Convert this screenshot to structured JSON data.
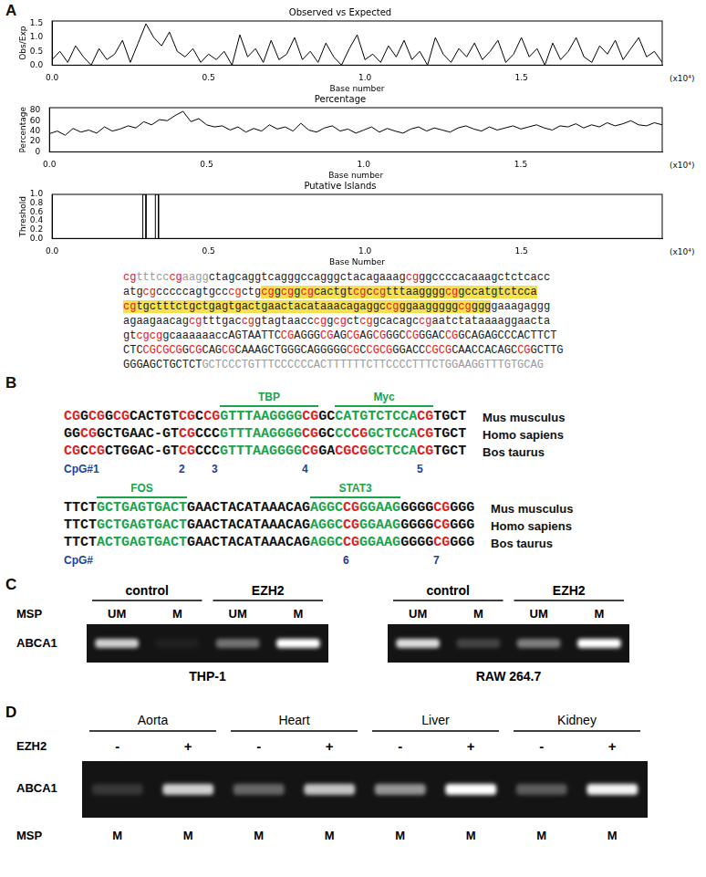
{
  "chart_data": [
    {
      "type": "line",
      "title": "Observed vs Expected",
      "x_label": "Base number",
      "y_label": "Obs/Exp",
      "annotation": "(x10⁴)",
      "color": "#000000",
      "grid": false,
      "x": [
        0,
        0.025,
        0.05,
        0.075,
        0.1,
        0.125,
        0.15,
        0.175,
        0.2,
        0.225,
        0.25,
        0.275,
        0.3,
        0.325,
        0.35,
        0.375,
        0.4,
        0.425,
        0.45,
        0.475,
        0.5,
        0.525,
        0.55,
        0.575,
        0.6,
        0.625,
        0.65,
        0.675,
        0.7,
        0.725,
        0.75,
        0.775,
        0.8,
        0.825,
        0.85,
        0.875,
        0.9,
        0.925,
        0.95,
        0.975,
        1.0,
        1.025,
        1.05,
        1.075,
        1.1,
        1.125,
        1.15,
        1.175,
        1.2,
        1.225,
        1.25,
        1.275,
        1.3,
        1.325,
        1.35,
        1.375,
        1.4,
        1.425,
        1.45,
        1.475,
        1.5,
        1.525,
        1.55,
        1.575,
        1.6,
        1.625,
        1.65,
        1.675,
        1.7,
        1.725,
        1.75,
        1.775,
        1.8,
        1.825,
        1.85,
        1.875,
        1.9,
        1.925,
        1.95
      ],
      "values": [
        0.2,
        0.5,
        0.1,
        0.7,
        0.3,
        0.0,
        0.6,
        0.2,
        0.4,
        0.9,
        0.1,
        0.8,
        1.5,
        1.0,
        0.7,
        1.2,
        0.5,
        0.3,
        0.6,
        0.1,
        0.4,
        0.2,
        0.5,
        0.0,
        1.1,
        0.3,
        0.6,
        0.1,
        0.9,
        0.2,
        0.4,
        1.0,
        0.2,
        0.5,
        0.1,
        0.8,
        0.3,
        0.0,
        0.6,
        1.1,
        0.2,
        0.4,
        0.1,
        0.7,
        0.3,
        0.9,
        0.2,
        0.5,
        0.0,
        1.0,
        0.4,
        0.1,
        0.6,
        0.3,
        0.8,
        0.2,
        0.5,
        0.9,
        0.1,
        0.4,
        1.0,
        0.3,
        0.6,
        0.0,
        0.8,
        0.2,
        0.5,
        1.0,
        0.3,
        0.1,
        0.7,
        0.4,
        0.9,
        0.2,
        0.6,
        1.0,
        0.3,
        0.5,
        0.1
      ],
      "xlim": [
        0,
        1.95
      ],
      "xticks": [
        {
          "value": 0,
          "label": "0.0"
        },
        {
          "value": 0.5,
          "label": "0.5"
        },
        {
          "value": 1,
          "label": "1.0"
        },
        {
          "value": 1.5,
          "label": "1.5"
        }
      ],
      "ylim": [
        0,
        1.6
      ],
      "yticks": [
        {
          "value": 0,
          "label": "0.0"
        },
        {
          "value": 0.5,
          "label": "0.5"
        },
        {
          "value": 1,
          "label": "1.0"
        },
        {
          "value": 1.5,
          "label": "1.5"
        }
      ]
    },
    {
      "type": "line",
      "title": "Percentage",
      "x_label": "Base number",
      "y_label": "Percentage",
      "annotation": "(x10⁴)",
      "color": "#000000",
      "grid": false,
      "x": [
        0,
        0.025,
        0.05,
        0.075,
        0.1,
        0.125,
        0.15,
        0.175,
        0.2,
        0.225,
        0.25,
        0.275,
        0.3,
        0.325,
        0.35,
        0.375,
        0.4,
        0.425,
        0.45,
        0.475,
        0.5,
        0.525,
        0.55,
        0.575,
        0.6,
        0.625,
        0.65,
        0.675,
        0.7,
        0.725,
        0.75,
        0.775,
        0.8,
        0.825,
        0.85,
        0.875,
        0.9,
        0.925,
        0.95,
        0.975,
        1.0,
        1.025,
        1.05,
        1.075,
        1.1,
        1.125,
        1.15,
        1.175,
        1.2,
        1.225,
        1.25,
        1.275,
        1.3,
        1.325,
        1.35,
        1.375,
        1.4,
        1.425,
        1.45,
        1.475,
        1.5,
        1.525,
        1.55,
        1.575,
        1.6,
        1.625,
        1.65,
        1.675,
        1.7,
        1.725,
        1.75,
        1.775,
        1.8,
        1.825,
        1.85,
        1.875,
        1.9,
        1.925,
        1.95
      ],
      "values": [
        35,
        40,
        32,
        45,
        38,
        42,
        36,
        48,
        40,
        44,
        50,
        46,
        58,
        52,
        62,
        60,
        70,
        78,
        58,
        64,
        52,
        48,
        50,
        42,
        48,
        38,
        45,
        40,
        52,
        44,
        48,
        40,
        55,
        42,
        38,
        46,
        50,
        40,
        44,
        36,
        42,
        48,
        38,
        45,
        40,
        36,
        44,
        48,
        40,
        46,
        42,
        38,
        46,
        50,
        44,
        40,
        48,
        42,
        46,
        50,
        44,
        48,
        52,
        46,
        42,
        50,
        48,
        54,
        46,
        52,
        48,
        56,
        50,
        54,
        60,
        52,
        50,
        56,
        52
      ],
      "xlim": [
        0,
        1.95
      ],
      "xticks": [
        {
          "value": 0,
          "label": "0.0"
        },
        {
          "value": 0.5,
          "label": "0.5"
        },
        {
          "value": 1,
          "label": "1.0"
        },
        {
          "value": 1.5,
          "label": "1.5"
        }
      ],
      "ylim": [
        0,
        85
      ],
      "yticks": [
        0,
        20,
        40,
        60,
        80
      ]
    },
    {
      "type": "line",
      "title": "Putative Islands",
      "x_label": "Base Number",
      "y_label": "Threshold",
      "annotation": "(x10⁴)",
      "color": "#000000",
      "grid": false,
      "x": [
        0,
        0.29,
        0.29,
        0.3,
        0.3,
        0.33,
        0.33,
        0.34,
        0.34,
        1.95
      ],
      "values": [
        0,
        0,
        1,
        1,
        0,
        0,
        1,
        1,
        0,
        0
      ],
      "xlim": [
        0,
        1.95
      ],
      "xticks": [
        {
          "value": 0,
          "label": "0.0"
        },
        {
          "value": 0.5,
          "label": "0.5"
        },
        {
          "value": 1,
          "label": "1.0"
        },
        {
          "value": 1.5,
          "label": "1.5"
        }
      ],
      "ylim": [
        0,
        1
      ],
      "yticks": [
        {
          "value": 0,
          "label": "0.0"
        },
        {
          "value": 0.2,
          "label": "0.2"
        },
        {
          "value": 0.4,
          "label": "0.4"
        },
        {
          "value": 0.6,
          "label": "0.6"
        },
        {
          "value": 0.8,
          "label": "0.8"
        },
        {
          "value": 1,
          "label": "1.0"
        }
      ]
    }
  ],
  "panel_A": {
    "label": "A",
    "sequence": [
      [
        {
          "text": "cgtttcccgaagg",
          "muted": true
        },
        {
          "text": "ctagcaggtcagggccagggctacagaaagcgggccccacaaagctctcacc"
        }
      ],
      [
        {
          "text": "atgcgcccccagtgcccgctg"
        },
        {
          "text": "cggcggcgcactgtcgccgtttaaggggcggccatgtctcca",
          "highlight": true
        }
      ],
      [
        {
          "text": "cgtgctttctgctgagtgactgaactacataaacagaggccgggaagggggcgggg",
          "highlight": true
        },
        {
          "text": "gaaagaggg"
        }
      ],
      [
        {
          "text": "agaagaacagcgtttgaccggtagtaacccggcgctcggcacagccgaatctataaaaggaacta"
        }
      ],
      [
        {
          "text": "gtcgcggcaaaaaaccAGTAATTCCGAGGGCGAGCGAGCGGGCCGGGACCGGCAGAGCCCACTTCT"
        }
      ],
      [
        {
          "text": "CTCCGCGCGGCGCAGCGCAAAGCTGGGCAGGGGGCGCCGCGGGACCCGCGCAACCACAGCCGGCTTG"
        }
      ],
      [
        {
          "text": "GGGAGCTGCTCT"
        },
        {
          "text": "GCTCCCTGTTTCCCCCCACTTTTTTCTTCCCCTTTCTGGAAGGTTTGTGCAG",
          "muted": true
        }
      ]
    ]
  },
  "panel_B": {
    "label": "B",
    "blocks": [
      {
        "motif_labels": [
          "TBP",
          "Myc"
        ],
        "rows": [
          {
            "species": "Mus musculus",
            "segments": [
              {
                "text": "CGGCGGCGCACTGTCGCCG"
              },
              {
                "text": "GTTTAAGGGGCG",
                "motif": true
              },
              {
                "text": "GC"
              },
              {
                "text": "CATGTCTCCACG",
                "motif": true
              },
              {
                "text": "TGCT"
              }
            ]
          },
          {
            "species": "Homo sapiens",
            "segments": [
              {
                "text": "GGCGGCTGAAC-GTCGCCC"
              },
              {
                "text": "GTTTAAGGGGCG",
                "motif": true
              },
              {
                "text": "GC"
              },
              {
                "text": "CCCGGCTCCACG",
                "motif": true
              },
              {
                "text": "TGCT"
              }
            ]
          },
          {
            "species": "Bos taurus",
            "segments": [
              {
                "text": "CGCCGCTGGAC-GTCGCCC"
              },
              {
                "text": "GTTTAAGGGGCG",
                "motif": true
              },
              {
                "text": "GA"
              },
              {
                "text": "CGCGGCTCCACG",
                "motif": true
              },
              {
                "text": "TGCT"
              }
            ]
          }
        ],
        "cpg_labels": [
          {
            "label": "CpG#1",
            "col": 0
          },
          {
            "label": "2",
            "col": 14
          },
          {
            "label": "3",
            "col": 18
          },
          {
            "label": "4",
            "col": 29
          },
          {
            "label": "5",
            "col": 43
          }
        ]
      },
      {
        "motif_labels": [
          "FOS",
          "STAT3"
        ],
        "rows": [
          {
            "species": "Mus musculus",
            "segments": [
              {
                "text": "TTCT"
              },
              {
                "text": "GCTGAGTGACT",
                "motif": true
              },
              {
                "text": "GAACTACATAAACAG"
              },
              {
                "text": "AGGCCGGGAAG",
                "motif": true
              },
              {
                "text": "GGGGCGGGG"
              }
            ]
          },
          {
            "species": "Homo sapiens",
            "segments": [
              {
                "text": "TTCT"
              },
              {
                "text": "GCTGAGTGACT",
                "motif": true
              },
              {
                "text": "GAACTACATAAACAG"
              },
              {
                "text": "AGGCCGGGAAG",
                "motif": true
              },
              {
                "text": "GGGGCGGGG"
              }
            ]
          },
          {
            "species": "Bos taurus",
            "segments": [
              {
                "text": "TTCT"
              },
              {
                "text": "ACTGAGTGACT",
                "motif": true
              },
              {
                "text": "GAACTACATAAACAG"
              },
              {
                "text": "AGGCCGGGAAG",
                "motif": true
              },
              {
                "text": "GGGGCGGGG"
              }
            ]
          }
        ],
        "cpg_labels": [
          {
            "label": "CpG#",
            "col": 0
          },
          {
            "label": "6",
            "col": 34
          },
          {
            "label": "7",
            "col": 45
          }
        ]
      }
    ]
  },
  "panel_C": {
    "label": "C",
    "row_label": "ABCA1",
    "msp_label": "MSP",
    "gels": [
      {
        "name": "THP-1",
        "groups": [
          {
            "label": "control",
            "lanes": [
              {
                "label": "UM",
                "intensity": 0.8
              },
              {
                "label": "M",
                "intensity": 0.05
              }
            ]
          },
          {
            "label": "EZH2",
            "lanes": [
              {
                "label": "UM",
                "intensity": 0.4
              },
              {
                "label": "M",
                "intensity": 1.0
              }
            ]
          }
        ]
      },
      {
        "name": "RAW 264.7",
        "groups": [
          {
            "label": "control",
            "lanes": [
              {
                "label": "UM",
                "intensity": 0.85
              },
              {
                "label": "M",
                "intensity": 0.2
              }
            ]
          },
          {
            "label": "EZH2",
            "lanes": [
              {
                "label": "UM",
                "intensity": 0.45
              },
              {
                "label": "M",
                "intensity": 1.0
              }
            ]
          }
        ]
      }
    ]
  },
  "panel_D": {
    "label": "D",
    "row_label": "ABCA1",
    "treatment_label": "EZH2",
    "msp_label": "MSP",
    "groups": [
      {
        "label": "Aorta",
        "lanes": [
          {
            "treatment": "-",
            "msp": "M",
            "intensity": 0.15
          },
          {
            "treatment": "+",
            "msp": "M",
            "intensity": 0.8
          }
        ]
      },
      {
        "label": "Heart",
        "lanes": [
          {
            "treatment": "-",
            "msp": "M",
            "intensity": 0.35
          },
          {
            "treatment": "+",
            "msp": "M",
            "intensity": 0.75
          }
        ]
      },
      {
        "label": "Liver",
        "lanes": [
          {
            "treatment": "-",
            "msp": "M",
            "intensity": 0.55
          },
          {
            "treatment": "+",
            "msp": "M",
            "intensity": 1.0
          }
        ]
      },
      {
        "label": "Kidney",
        "lanes": [
          {
            "treatment": "-",
            "msp": "M",
            "intensity": 0.3
          },
          {
            "treatment": "+",
            "msp": "M",
            "intensity": 0.95
          }
        ]
      }
    ]
  }
}
